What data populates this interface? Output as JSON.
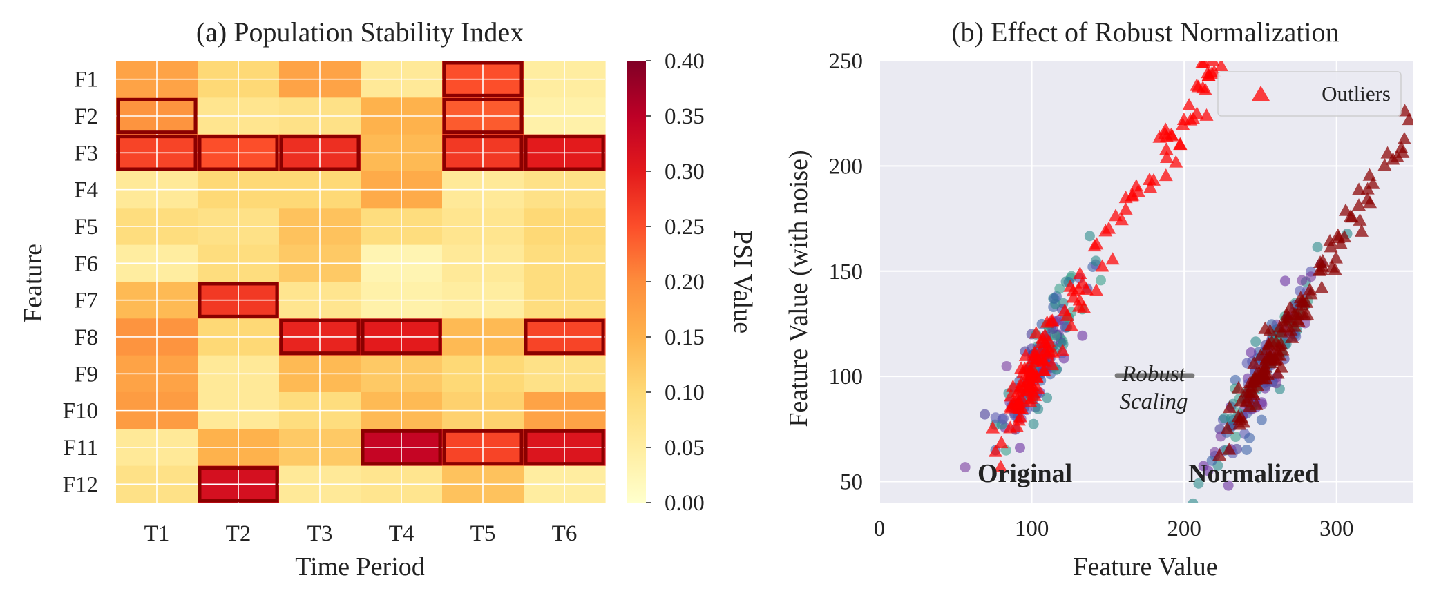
{
  "chart_data": [
    {
      "type": "heatmap",
      "title": "(a) Population Stability Index",
      "xlabel": "Time Period",
      "ylabel": "Feature",
      "x": [
        "T1",
        "T2",
        "T3",
        "T4",
        "T5",
        "T6"
      ],
      "y": [
        "F1",
        "F2",
        "F3",
        "F4",
        "F5",
        "F6",
        "F7",
        "F8",
        "F9",
        "F10",
        "F11",
        "F12"
      ],
      "values": [
        [
          0.17,
          0.1,
          0.17,
          0.06,
          0.25,
          0.05
        ],
        [
          0.19,
          0.07,
          0.08,
          0.15,
          0.24,
          0.04
        ],
        [
          0.26,
          0.25,
          0.28,
          0.14,
          0.27,
          0.3
        ],
        [
          0.06,
          0.1,
          0.1,
          0.16,
          0.06,
          0.08
        ],
        [
          0.09,
          0.08,
          0.13,
          0.09,
          0.07,
          0.1
        ],
        [
          0.05,
          0.09,
          0.12,
          0.03,
          0.06,
          0.09
        ],
        [
          0.14,
          0.27,
          0.07,
          0.04,
          0.05,
          0.09
        ],
        [
          0.19,
          0.1,
          0.29,
          0.3,
          0.14,
          0.26
        ],
        [
          0.17,
          0.06,
          0.14,
          0.12,
          0.1,
          0.08
        ],
        [
          0.18,
          0.06,
          0.09,
          0.14,
          0.11,
          0.17
        ],
        [
          0.06,
          0.15,
          0.12,
          0.34,
          0.26,
          0.31
        ],
        [
          0.08,
          0.32,
          0.06,
          0.07,
          0.13,
          0.05
        ]
      ],
      "highlighted": [
        [
          0,
          4
        ],
        [
          1,
          0
        ],
        [
          1,
          4
        ],
        [
          2,
          0
        ],
        [
          2,
          1
        ],
        [
          2,
          2
        ],
        [
          2,
          4
        ],
        [
          2,
          5
        ],
        [
          6,
          1
        ],
        [
          7,
          2
        ],
        [
          7,
          3
        ],
        [
          7,
          5
        ],
        [
          10,
          3
        ],
        [
          10,
          4
        ],
        [
          10,
          5
        ],
        [
          11,
          1
        ]
      ],
      "colorbar": {
        "label": "PSI Value",
        "range": [
          0.0,
          0.4
        ],
        "ticks": [
          "0.00",
          "0.05",
          "0.10",
          "0.15",
          "0.20",
          "0.25",
          "0.30",
          "0.35",
          "0.40"
        ],
        "colormap": "YlOrRd"
      }
    },
    {
      "type": "scatter",
      "title": "(b) Effect of Robust Normalization",
      "xlabel": "Feature Value",
      "ylabel": "Feature Value (with noise)",
      "xlim": [
        0,
        350
      ],
      "ylim": [
        40,
        250
      ],
      "xticks": [
        "0",
        "100",
        "200",
        "300"
      ],
      "yticks": [
        "50",
        "100",
        "150",
        "200",
        "250"
      ],
      "grid": true,
      "legend": {
        "position": "top-right",
        "entries": [
          "Outliers"
        ]
      },
      "annotations": {
        "original": "Original",
        "normalized": "Normalized",
        "arrow_line1": "Robust",
        "arrow_line2": "Scaling"
      },
      "series": [
        {
          "name": "Original inliers",
          "marker": "circle",
          "x_mean": 105,
          "x_sd": 14,
          "y_center_at_x100": 100,
          "slope": 1.25,
          "noise": 10,
          "count": 160
        },
        {
          "name": "Original outliers",
          "marker": "triangle",
          "color": "#ff0000",
          "x_range": [
            65,
            245
          ],
          "slope": 1.23,
          "noise": 7
        },
        {
          "name": "Normalized inliers",
          "marker": "circle",
          "x_mean": 248,
          "x_sd": 18,
          "y_center_at_x250": 100,
          "slope": 1.25,
          "noise": 9,
          "count": 160
        },
        {
          "name": "Normalized outliers",
          "marker": "triangle",
          "color": "#8b0000",
          "x_range": [
            205,
            350
          ],
          "slope": 1.23,
          "noise": 6
        }
      ]
    }
  ]
}
